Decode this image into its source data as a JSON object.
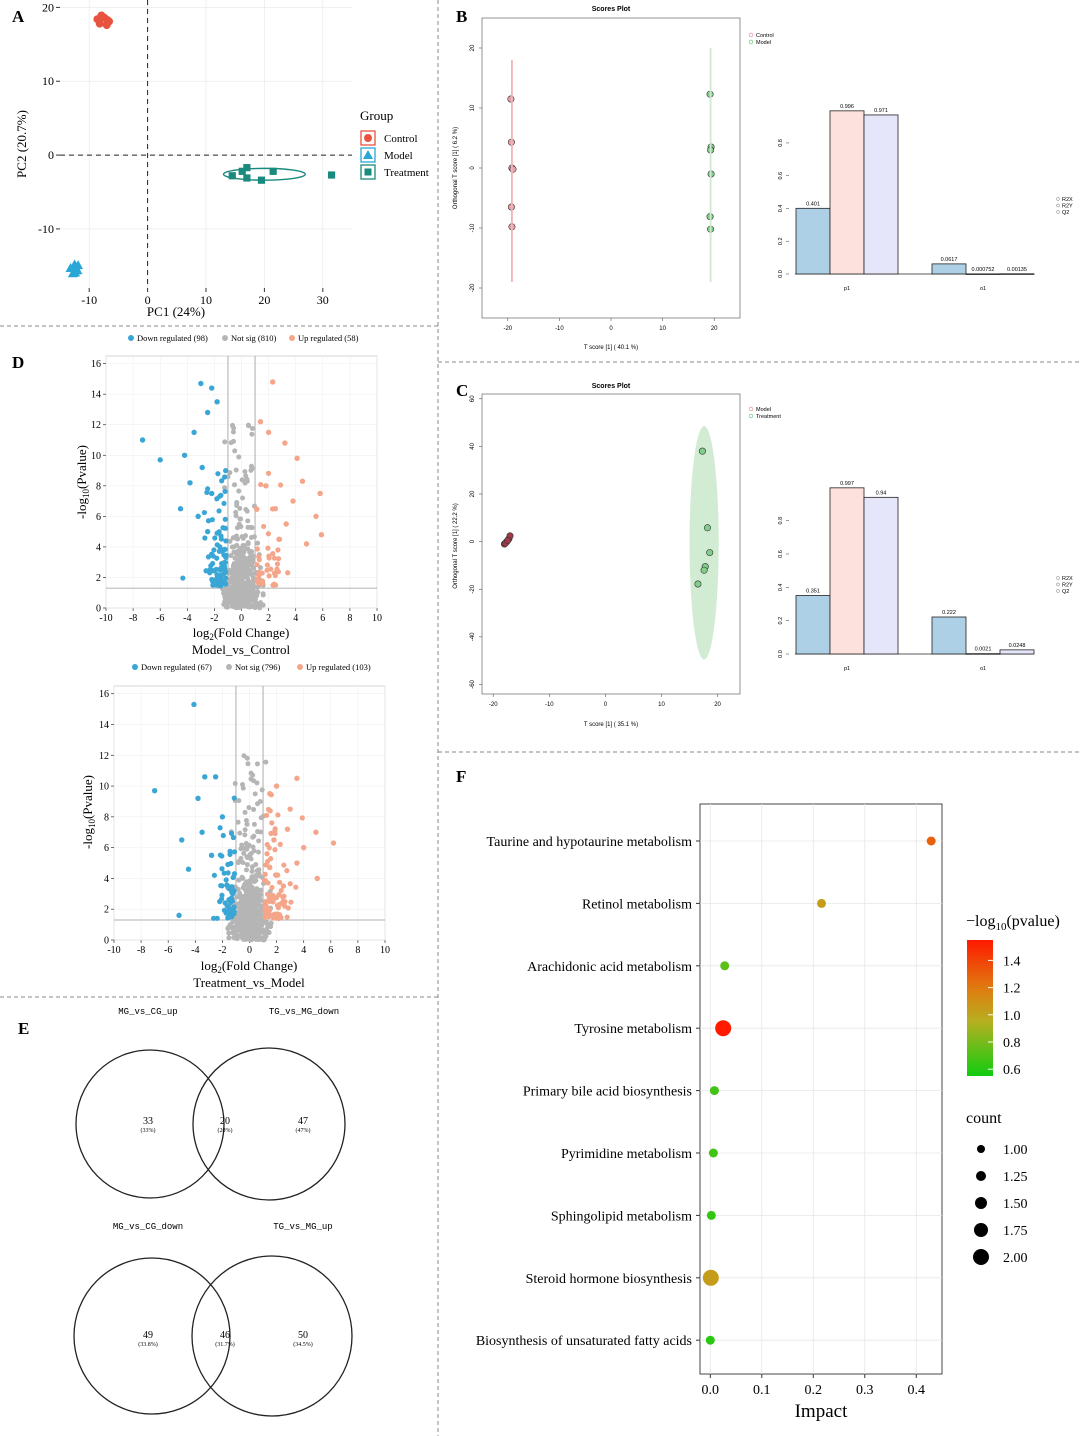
{
  "panel_letters": {
    "A": "A",
    "B": "B",
    "C": "C",
    "D": "D",
    "E": "E",
    "F": "F"
  },
  "colors": {
    "control": "#e8533f",
    "model": "#2aa7d6",
    "treatment": "#1a8a7e",
    "down": "#3aa6d6",
    "notsig": "#b5b5b5",
    "up": "#f4a58a",
    "r2x": "#aed0e6",
    "r2y": "#fde1dc",
    "q2": "#e6e6fa",
    "scoreControl": "#e8a0a8",
    "scoreModel": "#7fcf8a",
    "treatEllipse": "#bfe3c0"
  },
  "chart_data": [
    {
      "id": "A",
      "type": "scatter",
      "xlabel": "PC1 (24%)",
      "ylabel": "PC2 (20.7%)",
      "xlim": [
        -15,
        35
      ],
      "ylim": [
        -18,
        21
      ],
      "xticks": [
        -10,
        0,
        10,
        20,
        30
      ],
      "yticks": [
        -10,
        0,
        10,
        20
      ],
      "legend_title": "Group",
      "series": [
        {
          "name": "Control",
          "shape": "circle",
          "color": "#e8533f",
          "points": [
            [
              -8.6,
              18.4
            ],
            [
              -7.9,
              18.9
            ],
            [
              -7.0,
              17.6
            ],
            [
              -6.6,
              18.1
            ],
            [
              -8.2,
              17.8
            ],
            [
              -7.4,
              18.6
            ],
            [
              -6.9,
              18.3
            ]
          ]
        },
        {
          "name": "Model",
          "shape": "triangle",
          "color": "#2aa7d6",
          "points": [
            [
              -13.2,
              -15.3
            ],
            [
              -12.5,
              -14.8
            ],
            [
              -12.0,
              -15.6
            ],
            [
              -12.8,
              -16.0
            ],
            [
              -11.9,
              -14.9
            ],
            [
              -12.4,
              -15.9
            ]
          ]
        },
        {
          "name": "Treatment",
          "shape": "square",
          "color": "#1a8a7e",
          "points": [
            [
              14.5,
              -2.8
            ],
            [
              16.2,
              -2.2
            ],
            [
              17.0,
              -3.1
            ],
            [
              19.5,
              -3.4
            ],
            [
              21.5,
              -2.2
            ],
            [
              31.5,
              -2.7
            ],
            [
              17.0,
              -1.7
            ]
          ]
        }
      ],
      "ellipse": {
        "cx": 20.0,
        "cy": -2.6,
        "rx": 7.0,
        "ry": 0.8,
        "color": "#1a8a7e"
      }
    },
    {
      "id": "B",
      "type": "scatter",
      "title": "Scores Plot",
      "xlabel": "T score [1] ( 40.1 %)",
      "ylabel": "Orthogonal T score [1] ( 6.2 %)",
      "xlim": [
        -25,
        25
      ],
      "ylim": [
        -25,
        25
      ],
      "xticks": [
        -20,
        -10,
        0,
        10,
        20
      ],
      "yticks": [
        -20,
        -10,
        0,
        10,
        20
      ],
      "legend": [
        "Control",
        "Model"
      ],
      "series": [
        {
          "name": "Control",
          "color": "#e8a0a8",
          "points": [
            [
              -19.4,
              11.5
            ],
            [
              -19.3,
              4.3
            ],
            [
              -19.2,
              0.0
            ],
            [
              -19.0,
              -0.2
            ],
            [
              -19.3,
              -6.5
            ],
            [
              -19.2,
              -9.8
            ]
          ]
        },
        {
          "name": "Model",
          "color": "#7fcf8a",
          "points": [
            [
              19.2,
              12.3
            ],
            [
              19.4,
              3.5
            ],
            [
              19.3,
              3.0
            ],
            [
              19.4,
              -1.0
            ],
            [
              19.2,
              -8.1
            ],
            [
              19.3,
              -10.2
            ]
          ]
        }
      ]
    },
    {
      "id": "B2",
      "type": "bar",
      "categories": [
        "p1",
        "o1"
      ],
      "series": [
        {
          "name": "R2X",
          "values": [
            0.401,
            0.0617
          ],
          "labels": [
            "0.401",
            "0.0617"
          ],
          "color": "#aed0e6"
        },
        {
          "name": "R2Y",
          "values": [
            0.996,
            0.000752
          ],
          "labels": [
            "0.996",
            "0.000752"
          ],
          "color": "#fde1dc"
        },
        {
          "name": "Q2",
          "values": [
            0.971,
            0.00135
          ],
          "labels": [
            "0.971",
            "0.00135"
          ],
          "color": "#e6e6fa"
        }
      ],
      "ylim": [
        0,
        1.05
      ],
      "yticks": [
        0.0,
        0.2,
        0.4,
        0.6,
        0.8
      ],
      "legend": [
        "R2X",
        "R2Y",
        "Q2"
      ]
    },
    {
      "id": "C",
      "type": "scatter",
      "title": "Scores Plot",
      "xlabel": "T score [1] ( 35.1 %)",
      "ylabel": "Orthogonal T score [1] ( 22.2 %)",
      "xlim": [
        -22,
        24
      ],
      "ylim": [
        -64,
        62
      ],
      "xticks": [
        -20,
        -10,
        0,
        10,
        20
      ],
      "yticks": [
        -60,
        -40,
        -20,
        0,
        20,
        40,
        60
      ],
      "legend": [
        "Model",
        "Treatment"
      ],
      "series": [
        {
          "name": "Model",
          "color": "#a03a48",
          "points": [
            [
              -18.0,
              -1.0
            ],
            [
              -17.6,
              0.0
            ],
            [
              -17.2,
              1.2
            ],
            [
              -17.0,
              2.4
            ],
            [
              -17.8,
              -0.6
            ],
            [
              -17.4,
              0.5
            ]
          ]
        },
        {
          "name": "Treatment",
          "color": "#7fcf8a",
          "points": [
            [
              17.3,
              38.0
            ],
            [
              18.2,
              5.8
            ],
            [
              18.6,
              -4.6
            ],
            [
              17.8,
              -10.5
            ],
            [
              17.6,
              -12.0
            ],
            [
              16.5,
              -17.8
            ]
          ]
        }
      ],
      "ellipse": {
        "cx": 17.6,
        "cy": -0.5,
        "rx": 2.6,
        "ry": 49,
        "color": "#bfe3c0"
      }
    },
    {
      "id": "C2",
      "type": "bar",
      "categories": [
        "p1",
        "o1"
      ],
      "series": [
        {
          "name": "R2X",
          "values": [
            0.351,
            0.222
          ],
          "labels": [
            "0.351",
            "0.222"
          ],
          "color": "#aed0e6"
        },
        {
          "name": "R2Y",
          "values": [
            0.997,
            0.0021
          ],
          "labels": [
            "0.997",
            "0.0021"
          ],
          "color": "#fde1dc"
        },
        {
          "name": "Q2",
          "values": [
            0.94,
            0.0248
          ],
          "labels": [
            "0.94",
            "0.0248"
          ],
          "color": "#e6e6fa"
        }
      ],
      "ylim": [
        0,
        1.05
      ],
      "yticks": [
        0.0,
        0.2,
        0.4,
        0.6,
        0.8
      ],
      "legend": [
        "R2X",
        "R2Y",
        "Q2"
      ]
    },
    {
      "id": "D1",
      "type": "scatter",
      "title": "Model_vs_Control",
      "xlabel": "log2(Fold Change)",
      "ylabel": "-log10(Pvalue)",
      "xlim": [
        -10,
        10
      ],
      "ylim": [
        0,
        16.5
      ],
      "xticks": [
        -10,
        -8,
        -6,
        -4,
        -2,
        0,
        2,
        4,
        6,
        8,
        10
      ],
      "yticks": [
        0,
        2,
        4,
        6,
        8,
        10,
        12,
        14,
        16
      ],
      "legend": [
        "Down regulated (98)",
        "Not sig (810)",
        "Up regulated (58)"
      ],
      "vlines": [
        -1,
        1
      ],
      "hline": 1.3,
      "counts": {
        "down": 98,
        "notsig": 810,
        "up": 58
      },
      "highlights": {
        "down": [
          [
            -7.3,
            11.0
          ],
          [
            -6.0,
            9.7
          ],
          [
            -3.0,
            14.7
          ],
          [
            -2.2,
            14.4
          ],
          [
            -1.8,
            13.5
          ],
          [
            -2.5,
            12.8
          ],
          [
            -3.5,
            11.5
          ],
          [
            -4.2,
            10.0
          ],
          [
            -2.9,
            9.2
          ],
          [
            -3.8,
            8.2
          ],
          [
            -2.2,
            7.5
          ],
          [
            -4.5,
            6.5
          ],
          [
            -3.2,
            6.0
          ],
          [
            -2.5,
            5.0
          ],
          [
            -1.6,
            4.0
          ]
        ],
        "up": [
          [
            2.3,
            14.8
          ],
          [
            1.4,
            12.2
          ],
          [
            2.0,
            11.5
          ],
          [
            3.2,
            10.8
          ],
          [
            4.1,
            9.8
          ],
          [
            5.8,
            7.5
          ],
          [
            4.5,
            8.3
          ],
          [
            3.8,
            7.0
          ],
          [
            5.5,
            6.0
          ],
          [
            3.3,
            5.5
          ],
          [
            5.9,
            4.8
          ],
          [
            2.8,
            4.5
          ],
          [
            4.8,
            4.2
          ],
          [
            2.5,
            6.5
          ],
          [
            1.8,
            8.0
          ]
        ],
        "seed": 11
      }
    },
    {
      "id": "D2",
      "type": "scatter",
      "title": "Treatment_vs_Model",
      "xlabel": "log2(Fold Change)",
      "ylabel": "-log10(Pvalue)",
      "xlim": [
        -10,
        10
      ],
      "ylim": [
        0,
        16.5
      ],
      "xticks": [
        -10,
        -8,
        -6,
        -4,
        -2,
        0,
        2,
        4,
        6,
        8,
        10
      ],
      "yticks": [
        0,
        2,
        4,
        6,
        8,
        10,
        12,
        14,
        16
      ],
      "legend": [
        "Down regulated (67)",
        "Not sig (796)",
        "Up regulated (103)"
      ],
      "vlines": [
        -1,
        1
      ],
      "hline": 1.3,
      "counts": {
        "down": 67,
        "notsig": 796,
        "up": 103
      },
      "highlights": {
        "down": [
          [
            -4.1,
            15.3
          ],
          [
            -7.0,
            9.7
          ],
          [
            -3.3,
            10.6
          ],
          [
            -2.5,
            10.6
          ],
          [
            -5.0,
            6.5
          ],
          [
            -4.5,
            4.6
          ],
          [
            -5.2,
            1.6
          ],
          [
            -3.8,
            9.2
          ],
          [
            -2.0,
            8.0
          ],
          [
            -3.5,
            7.0
          ],
          [
            -2.8,
            5.5
          ],
          [
            -1.6,
            3.5
          ],
          [
            -2.2,
            2.5
          ]
        ],
        "up": [
          [
            3.5,
            10.5
          ],
          [
            2.0,
            10.0
          ],
          [
            1.5,
            9.5
          ],
          [
            3.0,
            8.5
          ],
          [
            4.9,
            7.0
          ],
          [
            6.2,
            6.3
          ],
          [
            2.8,
            7.2
          ],
          [
            4.0,
            6.0
          ],
          [
            3.5,
            5.0
          ],
          [
            5.0,
            4.0
          ],
          [
            2.5,
            3.5
          ],
          [
            1.8,
            6.5
          ]
        ],
        "seed": 23
      }
    },
    {
      "id": "F",
      "type": "scatter",
      "xlabel": "Impact",
      "legend_title_color": "−log10(pvalue)",
      "legend_title_size": "count",
      "xlim": [
        -0.02,
        0.45
      ],
      "xticks": [
        0.0,
        0.1,
        0.2,
        0.3,
        0.4
      ],
      "color_ticks": [
        1.4,
        1.2,
        1.0,
        0.8,
        0.6
      ],
      "size_ticks": [
        1.0,
        1.25,
        1.5,
        1.75,
        2.0
      ],
      "color_range": [
        0.55,
        1.55
      ],
      "pathways": [
        {
          "name": "Taurine and hypotaurine metabolism",
          "impact": 0.429,
          "pval": 1.3,
          "count": 1
        },
        {
          "name": "Retinol metabolism",
          "impact": 0.216,
          "pval": 1.0,
          "count": 1
        },
        {
          "name": "Arachidonic acid metabolism",
          "impact": 0.028,
          "pval": 0.7,
          "count": 1
        },
        {
          "name": "Tyrosine metabolism",
          "impact": 0.025,
          "pval": 1.55,
          "count": 2
        },
        {
          "name": "Primary bile acid biosynthesis",
          "impact": 0.008,
          "pval": 0.65,
          "count": 1
        },
        {
          "name": "Pyrimidine metabolism",
          "impact": 0.006,
          "pval": 0.65,
          "count": 1
        },
        {
          "name": "Sphingolipid metabolism",
          "impact": 0.002,
          "pval": 0.62,
          "count": 1
        },
        {
          "name": "Steroid hormone biosynthesis",
          "impact": 0.001,
          "pval": 1.0,
          "count": 2
        },
        {
          "name": "Biosynthesis of unsaturated fatty acids",
          "impact": 0.0,
          "pval": 0.6,
          "count": 1
        }
      ]
    }
  ],
  "venn": {
    "top": {
      "left_label": "MG_vs_CG_up",
      "right_label": "TG_vs_MG_down",
      "left": "33",
      "left_pct": "(33%)",
      "mid": "20",
      "mid_pct": "(20%)",
      "right": "47",
      "right_pct": "(47%)"
    },
    "bottom": {
      "left_label": "MG_vs_CG_down",
      "right_label": "TG_vs_MG_up",
      "left": "49",
      "left_pct": "(33.8%)",
      "mid": "46",
      "mid_pct": "(31.7%)",
      "right": "50",
      "right_pct": "(34.5%)"
    }
  }
}
